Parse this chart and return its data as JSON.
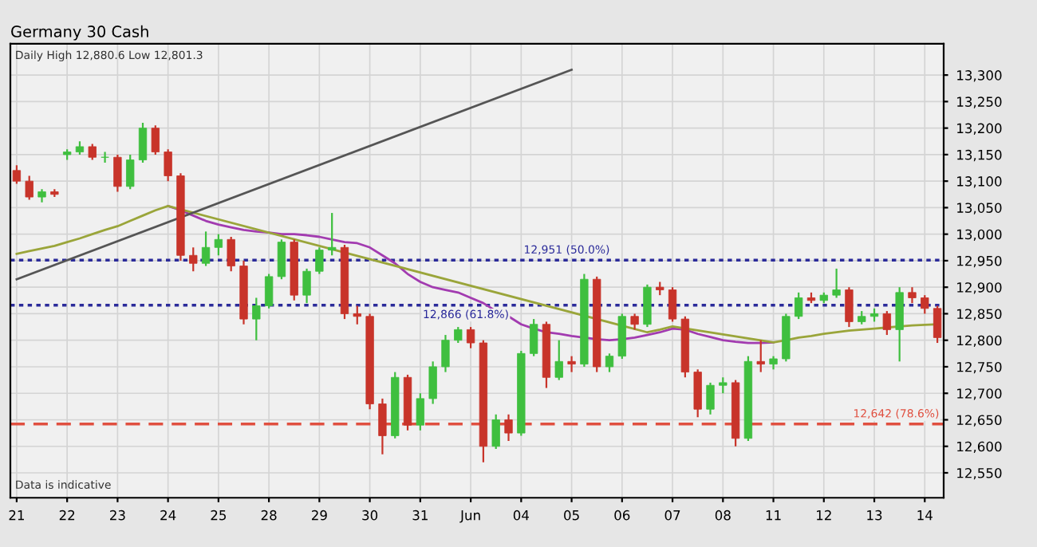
{
  "chart_data": {
    "type": "candlestick",
    "title": "Germany 30 Cash",
    "annotations": [
      "Daily High 12,880.6 Low 12,801.3",
      "Data is indicative"
    ],
    "categories": [
      "21",
      null,
      null,
      null,
      "22",
      null,
      null,
      null,
      "23",
      null,
      null,
      null,
      "24",
      null,
      null,
      null,
      "25",
      null,
      null,
      null,
      "28",
      null,
      null,
      null,
      "29",
      null,
      null,
      null,
      "30",
      null,
      null,
      null,
      "31",
      null,
      null,
      null,
      "Jun",
      null,
      null,
      null,
      "04",
      null,
      null,
      null,
      "05",
      null,
      null,
      null,
      "06",
      null,
      null,
      null,
      "07",
      null,
      null,
      null,
      "08",
      null,
      null,
      null,
      "11",
      null,
      null,
      null,
      "12",
      null,
      null,
      null,
      "13",
      null,
      null,
      null,
      "14",
      null
    ],
    "ohlc": [
      [
        13120,
        13130,
        13095,
        13100
      ],
      [
        13100,
        13110,
        13065,
        13070
      ],
      [
        13070,
        13085,
        13060,
        13080
      ],
      [
        13080,
        13085,
        13070,
        13075
      ],
      [
        13150,
        13160,
        13140,
        13155
      ],
      [
        13155,
        13175,
        13150,
        13165
      ],
      [
        13165,
        13170,
        13140,
        13145
      ],
      [
        13145,
        13155,
        13135,
        13145
      ],
      [
        13145,
        13150,
        13080,
        13090
      ],
      [
        13090,
        13150,
        13085,
        13140
      ],
      [
        13140,
        13210,
        13135,
        13200
      ],
      [
        13200,
        13205,
        13150,
        13155
      ],
      [
        13155,
        13160,
        13100,
        13110
      ],
      [
        13110,
        13115,
        12950,
        12960
      ],
      [
        12960,
        12975,
        12930,
        12945
      ],
      [
        12945,
        13005,
        12940,
        12975
      ],
      [
        12975,
        13000,
        12960,
        12990
      ],
      [
        12990,
        12995,
        12930,
        12940
      ],
      [
        12940,
        12950,
        12830,
        12840
      ],
      [
        12840,
        12880,
        12800,
        12865
      ],
      [
        12865,
        12925,
        12860,
        12920
      ],
      [
        12920,
        12990,
        12915,
        12985
      ],
      [
        12985,
        12990,
        12875,
        12885
      ],
      [
        12885,
        12935,
        12870,
        12930
      ],
      [
        12930,
        12975,
        12925,
        12970
      ],
      [
        12970,
        13040,
        12960,
        12975
      ],
      [
        12975,
        12980,
        12840,
        12850
      ],
      [
        12850,
        12865,
        12830,
        12845
      ],
      [
        12845,
        12850,
        12670,
        12680
      ],
      [
        12680,
        12690,
        12585,
        12620
      ],
      [
        12620,
        12740,
        12615,
        12730
      ],
      [
        12730,
        12735,
        12630,
        12640
      ],
      [
        12640,
        12700,
        12630,
        12690
      ],
      [
        12690,
        12760,
        12680,
        12750
      ],
      [
        12750,
        12810,
        12740,
        12800
      ],
      [
        12800,
        12825,
        12795,
        12820
      ],
      [
        12820,
        12825,
        12785,
        12795
      ],
      [
        12795,
        12800,
        12570,
        12600
      ],
      [
        12600,
        12660,
        12595,
        12650
      ],
      [
        12650,
        12660,
        12610,
        12625
      ],
      [
        12625,
        12780,
        12620,
        12775
      ],
      [
        12775,
        12840,
        12770,
        12830
      ],
      [
        12830,
        12835,
        12710,
        12730
      ],
      [
        12730,
        12800,
        12725,
        12760
      ],
      [
        12760,
        12770,
        12740,
        12755
      ],
      [
        12755,
        12925,
        12750,
        12915
      ],
      [
        12915,
        12920,
        12740,
        12750
      ],
      [
        12750,
        12775,
        12740,
        12770
      ],
      [
        12770,
        12850,
        12765,
        12845
      ],
      [
        12845,
        12850,
        12820,
        12830
      ],
      [
        12830,
        12905,
        12825,
        12900
      ],
      [
        12900,
        12910,
        12885,
        12895
      ],
      [
        12895,
        12900,
        12835,
        12840
      ],
      [
        12840,
        12845,
        12730,
        12740
      ],
      [
        12740,
        12745,
        12655,
        12670
      ],
      [
        12670,
        12720,
        12660,
        12715
      ],
      [
        12715,
        12730,
        12700,
        12720
      ],
      [
        12720,
        12725,
        12600,
        12615
      ],
      [
        12615,
        12770,
        12610,
        12760
      ],
      [
        12760,
        12800,
        12740,
        12755
      ],
      [
        12755,
        12770,
        12745,
        12765
      ],
      [
        12765,
        12850,
        12760,
        12845
      ],
      [
        12845,
        12890,
        12840,
        12880
      ],
      [
        12880,
        12890,
        12870,
        12875
      ],
      [
        12875,
        12890,
        12870,
        12885
      ],
      [
        12885,
        12935,
        12880,
        12895
      ],
      [
        12895,
        12900,
        12825,
        12835
      ],
      [
        12835,
        12855,
        12830,
        12845
      ],
      [
        12845,
        12860,
        12835,
        12850
      ],
      [
        12850,
        12855,
        12810,
        12820
      ],
      [
        12820,
        12900,
        12760,
        12890
      ],
      [
        12890,
        12900,
        12870,
        12880
      ],
      [
        12880,
        12885,
        12850,
        12860
      ],
      [
        12860,
        12865,
        12795,
        12805
      ]
    ],
    "series": [
      {
        "type": "line",
        "color": "#a23bb0",
        "values": [
          null,
          null,
          null,
          null,
          null,
          null,
          null,
          null,
          null,
          null,
          null,
          null,
          13053,
          13045,
          13035,
          13025,
          13018,
          13013,
          13008,
          13005,
          13003,
          13000,
          13000,
          12998,
          12995,
          12990,
          12985,
          12983,
          12975,
          12960,
          12945,
          12925,
          12910,
          12900,
          12895,
          12890,
          12880,
          12870,
          12855,
          12845,
          12830,
          12822,
          12815,
          12812,
          12808,
          12805,
          12802,
          12800,
          12802,
          12805,
          12810,
          12815,
          12822,
          12820,
          12812,
          12806,
          12800,
          12797,
          12795,
          12795,
          12796,
          null,
          null,
          null,
          null,
          null,
          null,
          null,
          null,
          null,
          null,
          null,
          null,
          null
        ]
      },
      {
        "type": "line",
        "color": "#9aa53a",
        "values": [
          12963,
          12968,
          12973,
          12978,
          12985,
          12992,
          13000,
          13008,
          13015,
          13025,
          13035,
          13045,
          13053,
          null,
          null,
          null,
          null,
          null,
          null,
          null,
          null,
          null,
          null,
          null,
          null,
          null,
          null,
          null,
          null,
          null,
          null,
          null,
          null,
          null,
          null,
          null,
          null,
          null,
          null,
          null,
          null,
          null,
          null,
          null,
          null,
          null,
          null,
          null,
          null,
          null,
          12815,
          12820,
          12826,
          null,
          null,
          null,
          null,
          null,
          null,
          null,
          12796,
          12800,
          12805,
          12808,
          12812,
          12815,
          12818,
          12820,
          12822,
          12824,
          12826,
          12828,
          12829,
          12830
        ]
      },
      {
        "type": "line",
        "color": "#555555",
        "x": [
          "21",
          "05"
        ],
        "values": [
          12915,
          13310
        ]
      }
    ],
    "ref_lines": [
      {
        "axis": "y",
        "value": 12951,
        "label": "12,951 (50.0%)",
        "color": "#2b2b9a",
        "line_style": "dotted"
      },
      {
        "axis": "y",
        "value": 12866,
        "label": "12,866 (61.8%)",
        "color": "#2b2b9a",
        "line_style": "dotted"
      },
      {
        "axis": "y",
        "value": 12642,
        "label": "12,642 (78.6%)",
        "color": "#e05040",
        "line_style": "dashed"
      }
    ],
    "ylim": [
      12503,
      13359
    ],
    "yticks": [
      {
        "value": 12550,
        "label": "12,550"
      },
      {
        "value": 12600,
        "label": "12,600"
      },
      {
        "value": 12650,
        "label": "12,650"
      },
      {
        "value": 12700,
        "label": "12,700"
      },
      {
        "value": 12750,
        "label": "12,750"
      },
      {
        "value": 12800,
        "label": "12,800"
      },
      {
        "value": 12850,
        "label": "12,850"
      },
      {
        "value": 12900,
        "label": "12,900"
      },
      {
        "value": 12950,
        "label": "12,950"
      },
      {
        "value": 13000,
        "label": "13,000"
      },
      {
        "value": 13050,
        "label": "13,050"
      },
      {
        "value": 13100,
        "label": "13,100"
      },
      {
        "value": 13150,
        "label": "13,150"
      },
      {
        "value": 13200,
        "label": "13,200"
      },
      {
        "value": 13250,
        "label": "13,250"
      },
      {
        "value": 13300,
        "label": "13,300"
      }
    ],
    "grid": true
  }
}
